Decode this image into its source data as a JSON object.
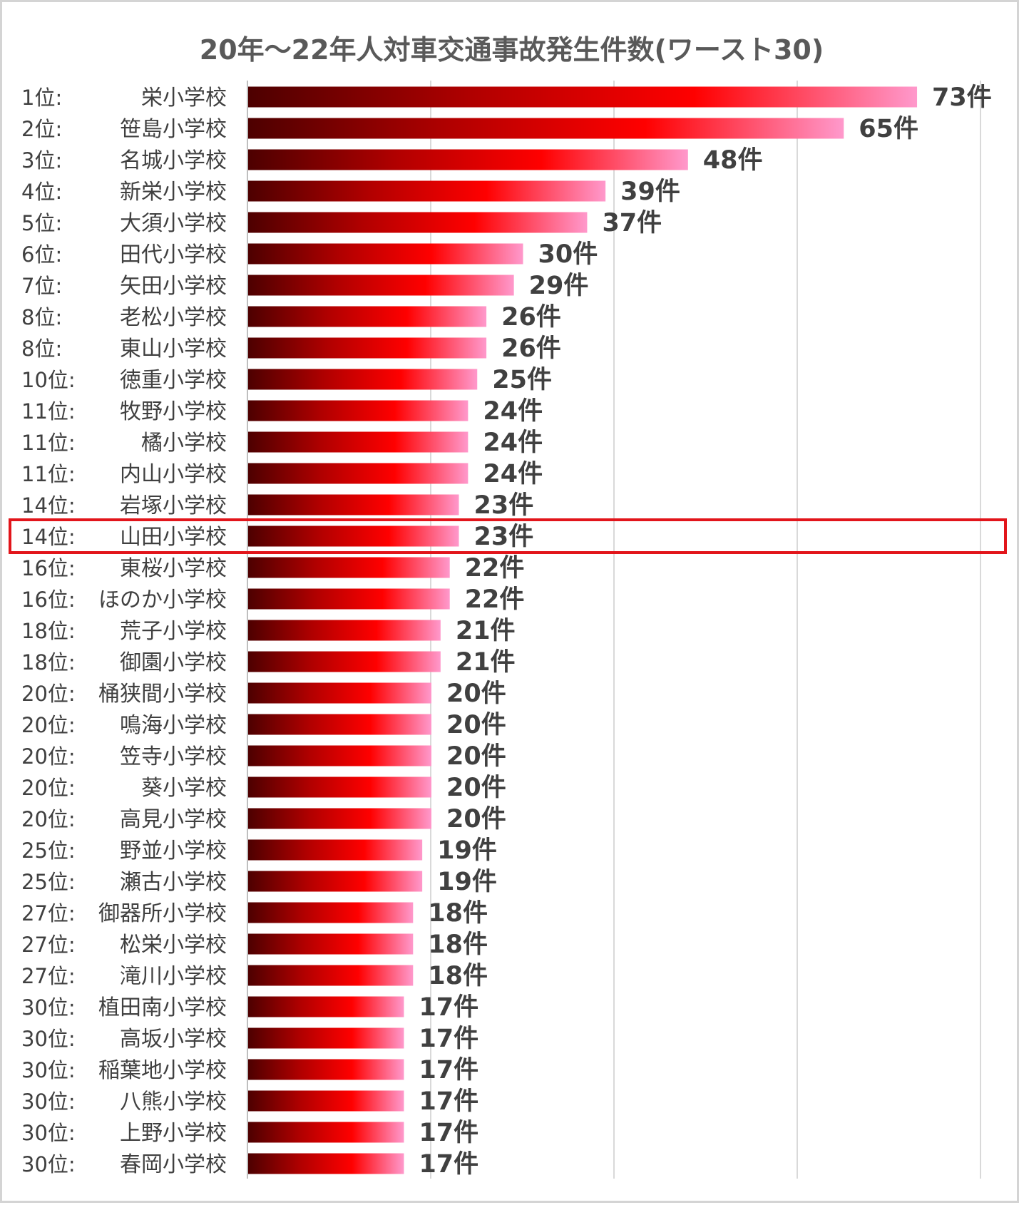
{
  "chart_data": {
    "type": "bar",
    "orientation": "horizontal",
    "title": "20年～22年人対車交通事故発生件数(ワースト30)",
    "value_suffix": "件",
    "xlim": [
      0,
      80
    ],
    "grid": true,
    "highlight_index": 14,
    "highlight_color": "#e2151b",
    "gradient_colors": [
      "#4d0000",
      "#b00000",
      "#ff0000",
      "#ff99cc"
    ],
    "rows": [
      {
        "rank": "1位:",
        "name": "栄小学校",
        "value": 73
      },
      {
        "rank": "2位:",
        "name": "笹島小学校",
        "value": 65
      },
      {
        "rank": "3位:",
        "name": "名城小学校",
        "value": 48
      },
      {
        "rank": "4位:",
        "name": "新栄小学校",
        "value": 39
      },
      {
        "rank": "5位:",
        "name": "大須小学校",
        "value": 37
      },
      {
        "rank": "6位:",
        "name": "田代小学校",
        "value": 30
      },
      {
        "rank": "7位:",
        "name": "矢田小学校",
        "value": 29
      },
      {
        "rank": "8位:",
        "name": "老松小学校",
        "value": 26
      },
      {
        "rank": "8位:",
        "name": "東山小学校",
        "value": 26
      },
      {
        "rank": "10位:",
        "name": "徳重小学校",
        "value": 25
      },
      {
        "rank": "11位:",
        "name": "牧野小学校",
        "value": 24
      },
      {
        "rank": "11位:",
        "name": "橘小学校",
        "value": 24
      },
      {
        "rank": "11位:",
        "name": "内山小学校",
        "value": 24
      },
      {
        "rank": "14位:",
        "name": "岩塚小学校",
        "value": 23
      },
      {
        "rank": "14位:",
        "name": "山田小学校",
        "value": 23
      },
      {
        "rank": "16位:",
        "name": "東桜小学校",
        "value": 22
      },
      {
        "rank": "16位:",
        "name": "ほのか小学校",
        "value": 22
      },
      {
        "rank": "18位:",
        "name": "荒子小学校",
        "value": 21
      },
      {
        "rank": "18位:",
        "name": "御園小学校",
        "value": 21
      },
      {
        "rank": "20位:",
        "name": "桶狭間小学校",
        "value": 20
      },
      {
        "rank": "20位:",
        "name": "鳴海小学校",
        "value": 20
      },
      {
        "rank": "20位:",
        "name": "笠寺小学校",
        "value": 20
      },
      {
        "rank": "20位:",
        "name": "葵小学校",
        "value": 20
      },
      {
        "rank": "20位:",
        "name": "高見小学校",
        "value": 20
      },
      {
        "rank": "25位:",
        "name": "野並小学校",
        "value": 19
      },
      {
        "rank": "25位:",
        "name": "瀬古小学校",
        "value": 19
      },
      {
        "rank": "27位:",
        "name": "御器所小学校",
        "value": 18
      },
      {
        "rank": "27位:",
        "name": "松栄小学校",
        "value": 18
      },
      {
        "rank": "27位:",
        "name": "滝川小学校",
        "value": 18
      },
      {
        "rank": "30位:",
        "name": "植田南小学校",
        "value": 17
      },
      {
        "rank": "30位:",
        "name": "高坂小学校",
        "value": 17
      },
      {
        "rank": "30位:",
        "name": "稲葉地小学校",
        "value": 17
      },
      {
        "rank": "30位:",
        "name": "八熊小学校",
        "value": 17
      },
      {
        "rank": "30位:",
        "name": "上野小学校",
        "value": 17
      },
      {
        "rank": "30位:",
        "name": "春岡小学校",
        "value": 17
      }
    ]
  }
}
